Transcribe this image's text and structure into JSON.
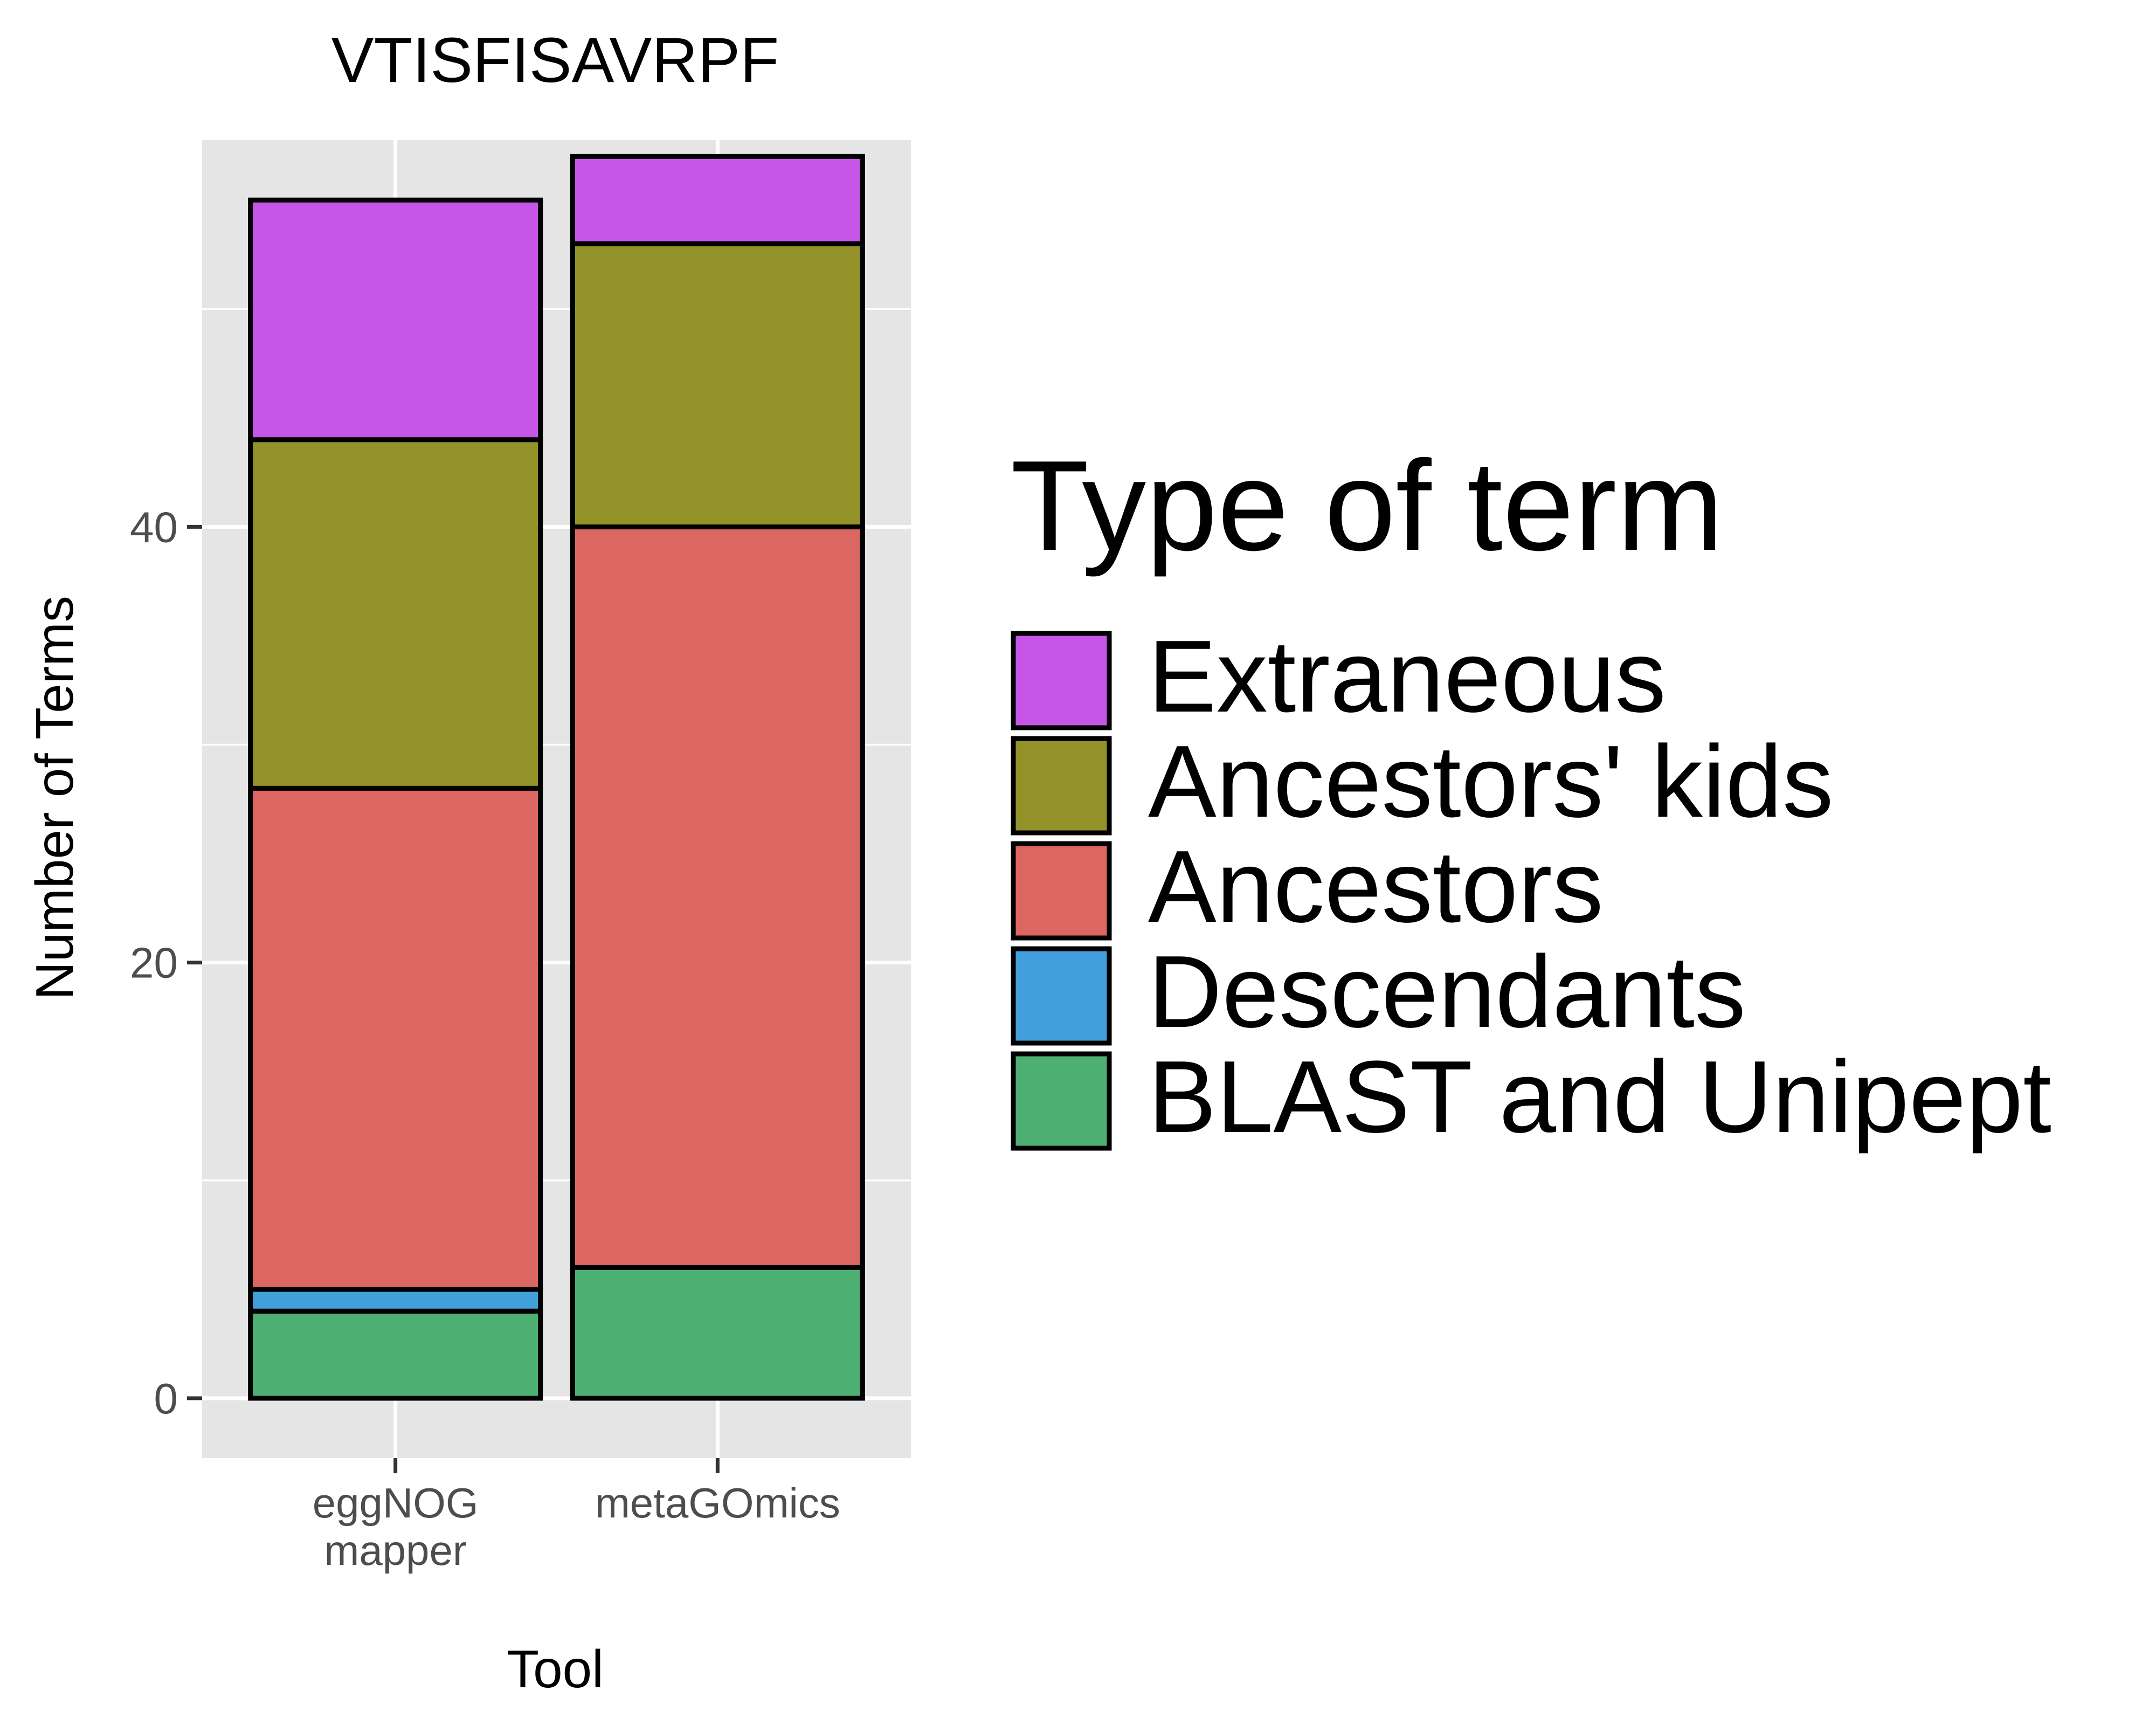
{
  "chart_data": {
    "type": "bar",
    "stacked": true,
    "title": "VTISFISAVRPF",
    "xlabel": "Tool",
    "ylabel": "Number of Terms",
    "categories": [
      "eggNOG\nmapper",
      "metaGOmics"
    ],
    "yticks": [
      0,
      20,
      40
    ],
    "ylim": [
      -2.75,
      57.75
    ],
    "grid": true,
    "legend": {
      "title": "Type of term",
      "placement": "right"
    },
    "series": [
      {
        "name": "BLAST and Unipept",
        "color": "#4DAF72",
        "values": [
          4,
          6
        ]
      },
      {
        "name": "Descendants",
        "color": "#419FDC",
        "values": [
          1,
          0
        ]
      },
      {
        "name": "Ancestors",
        "color": "#DC6662",
        "values": [
          23,
          34
        ]
      },
      {
        "name": "Ancestors' kids",
        "color": "#939229",
        "values": [
          16,
          13
        ]
      },
      {
        "name": "Extraneous",
        "color": "#C656E8",
        "values": [
          11,
          4
        ]
      }
    ],
    "legend_order": [
      "Extraneous",
      "Ancestors' kids",
      "Ancestors",
      "Descendants",
      "BLAST and Unipept"
    ]
  }
}
